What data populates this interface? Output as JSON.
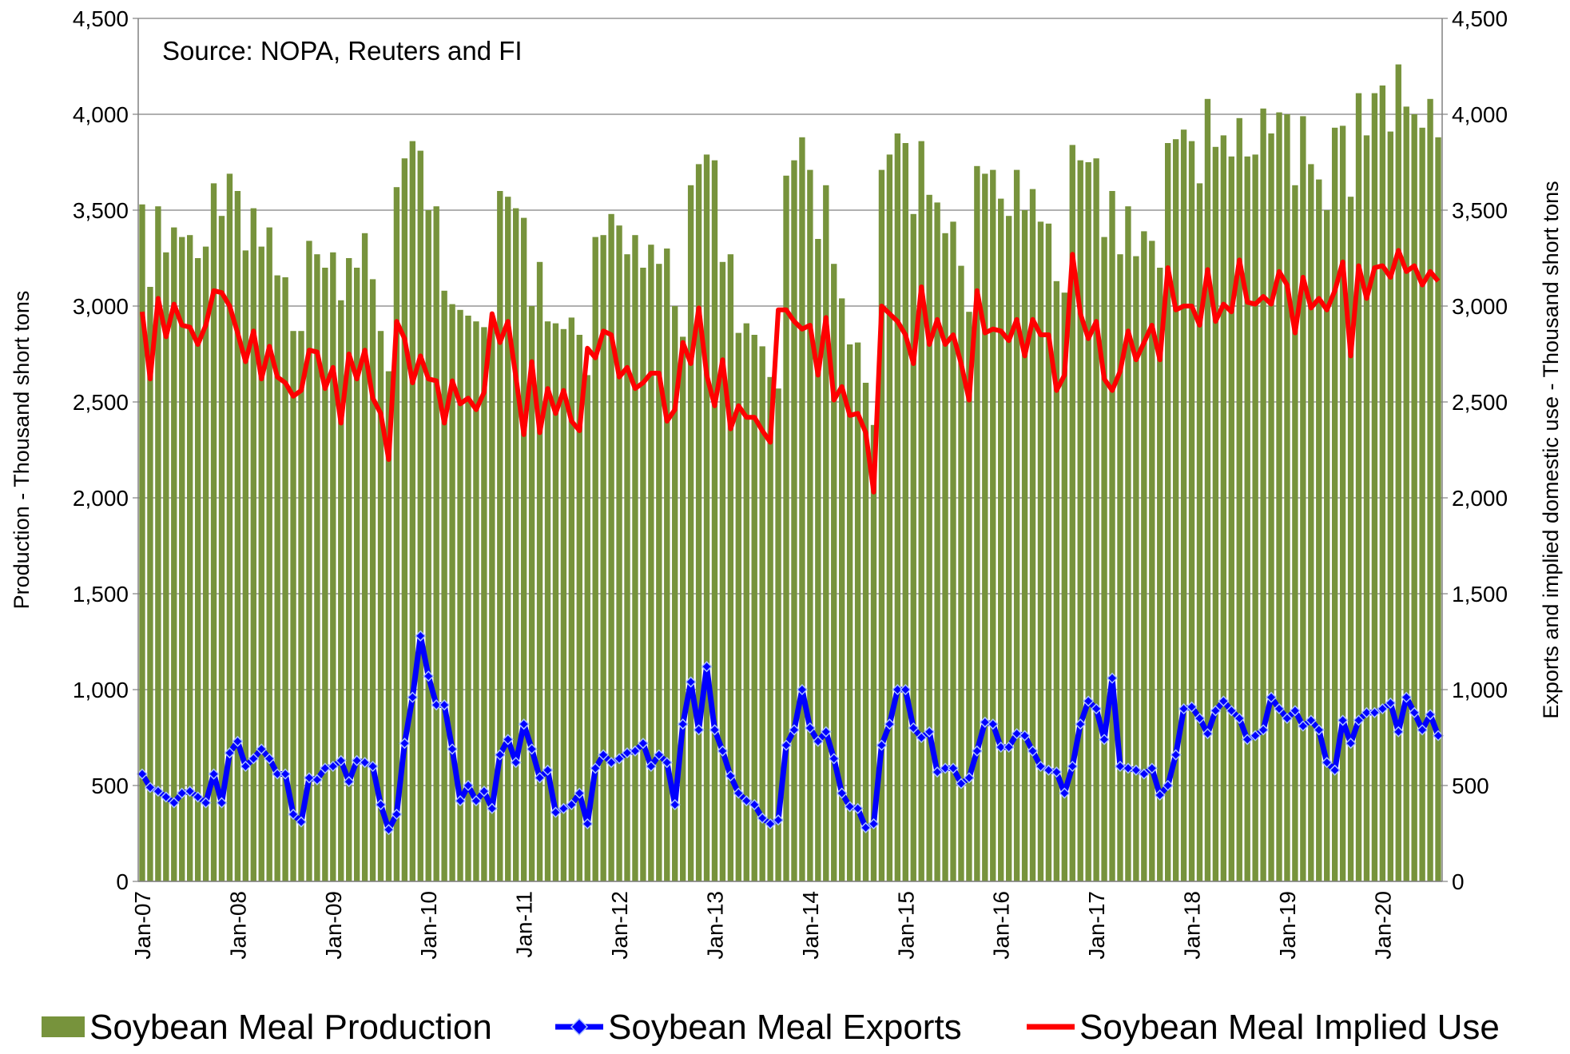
{
  "chart_data": {
    "type": "bar_line",
    "annotation": "Source: NOPA, Reuters and FI",
    "y_label": "Production - Thousand short tons",
    "y2_label": "Exports and implied domestic use - Thousand short tons",
    "ylim": [
      0,
      4500
    ],
    "yticks": [
      0,
      500,
      {
        "value": 1000,
        "label": "1,000"
      },
      {
        "value": 1500,
        "label": "1,500"
      },
      {
        "value": 2000,
        "label": "2,000"
      },
      {
        "value": 2500,
        "label": "2,500"
      },
      {
        "value": 3000,
        "label": "3,000"
      },
      {
        "value": 3500,
        "label": "3,500"
      },
      {
        "value": 4000,
        "label": "4,000"
      },
      {
        "value": 4500,
        "label": "4,500"
      }
    ],
    "y2lim": [
      0,
      4500
    ],
    "y2ticks": [
      0,
      500,
      {
        "value": 1000,
        "label": "1,000"
      },
      {
        "value": 1500,
        "label": "1,500"
      },
      {
        "value": 2000,
        "label": "2,000"
      },
      {
        "value": 2500,
        "label": "2,500"
      },
      {
        "value": 3000,
        "label": "3,000"
      },
      {
        "value": 3500,
        "label": "3,500"
      },
      {
        "value": 4000,
        "label": "4,000"
      },
      {
        "value": 4500,
        "label": "4,500"
      }
    ],
    "grid": true,
    "legend": "bottom",
    "categories": [
      "Jan-07",
      null,
      null,
      null,
      null,
      null,
      null,
      null,
      null,
      null,
      null,
      null,
      "Jan-08",
      null,
      null,
      null,
      null,
      null,
      null,
      null,
      null,
      null,
      null,
      null,
      "Jan-09",
      null,
      null,
      null,
      null,
      null,
      null,
      null,
      null,
      null,
      null,
      null,
      "Jan-10",
      null,
      null,
      null,
      null,
      null,
      null,
      null,
      null,
      null,
      null,
      null,
      "Jan-11",
      null,
      null,
      null,
      null,
      null,
      null,
      null,
      null,
      null,
      null,
      null,
      "Jan-12",
      null,
      null,
      null,
      null,
      null,
      null,
      null,
      null,
      null,
      null,
      null,
      "Jan-13",
      null,
      null,
      null,
      null,
      null,
      null,
      null,
      null,
      null,
      null,
      null,
      "Jan-14",
      null,
      null,
      null,
      null,
      null,
      null,
      null,
      null,
      null,
      null,
      null,
      "Jan-15",
      null,
      null,
      null,
      null,
      null,
      null,
      null,
      null,
      null,
      null,
      null,
      "Jan-16",
      null,
      null,
      null,
      null,
      null,
      null,
      null,
      null,
      null,
      null,
      null,
      "Jan-17",
      null,
      null,
      null,
      null,
      null,
      null,
      null,
      null,
      null,
      null,
      null,
      "Jan-18",
      null,
      null,
      null,
      null,
      null,
      null,
      null,
      null,
      null,
      null,
      null,
      "Jan-19",
      null,
      null,
      null,
      null,
      null,
      null,
      null,
      null,
      null,
      null,
      null,
      "Jan-20",
      null,
      null,
      null,
      null,
      null,
      null,
      null
    ],
    "series": [
      {
        "name": "Soybean Meal Production",
        "type": "bar",
        "color": "#77933c",
        "values": [
          3530,
          3100,
          3520,
          3280,
          3410,
          3360,
          3370,
          3250,
          3310,
          3640,
          3470,
          3690,
          3600,
          3290,
          3510,
          3310,
          3410,
          3160,
          3150,
          2870,
          2870,
          3340,
          3270,
          3200,
          3280,
          3030,
          3250,
          3200,
          3380,
          3140,
          2870,
          2660,
          3620,
          3770,
          3860,
          3810,
          3500,
          3520,
          3080,
          3010,
          2980,
          2950,
          2920,
          2890,
          2920,
          3600,
          3570,
          3510,
          3460,
          3000,
          3230,
          2920,
          2910,
          2880,
          2940,
          2850,
          2640,
          3360,
          3370,
          3480,
          3420,
          3270,
          3370,
          3200,
          3320,
          3220,
          3300,
          3000,
          2840,
          3630,
          3740,
          3790,
          3760,
          3230,
          3270,
          2860,
          2910,
          2850,
          2790,
          2630,
          2570,
          3680,
          3760,
          3880,
          3710,
          3350,
          3630,
          3220,
          3040,
          2800,
          2810,
          2600,
          2380,
          3710,
          3790,
          3900,
          3850,
          3480,
          3860,
          3580,
          3540,
          3380,
          3440,
          3210,
          2970,
          3730,
          3690,
          3710,
          3560,
          3470,
          3710,
          3500,
          3610,
          3440,
          3430,
          3130,
          3070,
          3840,
          3760,
          3750,
          3770,
          3360,
          3600,
          3270,
          3520,
          3260,
          3390,
          3340,
          3200,
          3850,
          3870,
          3920,
          3860,
          3640,
          4080,
          3830,
          3890,
          3780,
          3980,
          3780,
          3790,
          4030,
          3900,
          4010,
          4000,
          3630,
          3990,
          3740,
          3660,
          3500,
          3930,
          3940,
          3570,
          4110,
          3890,
          4110,
          4150,
          3910,
          4260,
          4040,
          4000,
          3930,
          4080,
          3880
        ]
      },
      {
        "name": "Soybean Meal Exports",
        "type": "line",
        "axis": "y2",
        "color": "#0000ff",
        "values": [
          560,
          490,
          470,
          440,
          410,
          460,
          470,
          440,
          410,
          560,
          410,
          670,
          730,
          600,
          640,
          690,
          640,
          560,
          560,
          350,
          310,
          540,
          530,
          590,
          600,
          630,
          520,
          630,
          620,
          600,
          400,
          270,
          350,
          720,
          960,
          1280,
          1070,
          920,
          920,
          690,
          420,
          500,
          420,
          470,
          380,
          660,
          740,
          620,
          820,
          690,
          540,
          580,
          360,
          380,
          400,
          460,
          300,
          590,
          660,
          620,
          640,
          670,
          680,
          720,
          600,
          660,
          620,
          400,
          820,
          1040,
          790,
          1120,
          790,
          680,
          550,
          460,
          420,
          400,
          330,
          300,
          320,
          710,
          790,
          1000,
          800,
          730,
          780,
          640,
          460,
          390,
          380,
          280,
          300,
          710,
          820,
          1000,
          1000,
          800,
          750,
          780,
          570,
          590,
          590,
          510,
          540,
          680,
          830,
          820,
          700,
          700,
          770,
          760,
          680,
          600,
          580,
          570,
          460,
          600,
          820,
          940,
          900,
          740,
          1060,
          600,
          590,
          580,
          560,
          590,
          450,
          500,
          660,
          900,
          910,
          850,
          770,
          890,
          940,
          890,
          850,
          740,
          760,
          790,
          960,
          900,
          850,
          890,
          810,
          840,
          790,
          620,
          580,
          840,
          720,
          840,
          880,
          880,
          900,
          930,
          780,
          960,
          880,
          790,
          870,
          760
        ]
      },
      {
        "name": "Soybean Meal Implied Use",
        "type": "line",
        "axis": "y2",
        "color": "#ff0000",
        "values": [
          2970,
          2620,
          3040,
          2840,
          3010,
          2900,
          2890,
          2800,
          2900,
          3080,
          3070,
          3000,
          2860,
          2710,
          2870,
          2620,
          2790,
          2630,
          2600,
          2530,
          2560,
          2770,
          2760,
          2570,
          2680,
          2390,
          2750,
          2620,
          2770,
          2520,
          2440,
          2200,
          2920,
          2830,
          2600,
          2740,
          2620,
          2610,
          2390,
          2610,
          2490,
          2520,
          2460,
          2550,
          2960,
          2810,
          2920,
          2630,
          2330,
          2710,
          2340,
          2570,
          2440,
          2560,
          2400,
          2350,
          2780,
          2730,
          2870,
          2850,
          2630,
          2680,
          2570,
          2600,
          2650,
          2650,
          2400,
          2460,
          2810,
          2700,
          2990,
          2640,
          2480,
          2720,
          2360,
          2480,
          2420,
          2420,
          2350,
          2290,
          2980,
          2980,
          2920,
          2880,
          2900,
          2640,
          2940,
          2510,
          2580,
          2430,
          2440,
          2340,
          2030,
          3000,
          2960,
          2920,
          2850,
          2700,
          3100,
          2800,
          2930,
          2800,
          2850,
          2700,
          2510,
          3080,
          2860,
          2880,
          2870,
          2820,
          2930,
          2740,
          2930,
          2850,
          2850,
          2560,
          2640,
          3270,
          2960,
          2830,
          2920,
          2620,
          2560,
          2660,
          2870,
          2720,
          2810,
          2900,
          2720,
          3200,
          2980,
          3000,
          3000,
          2900,
          3190,
          2920,
          3010,
          2970,
          3240,
          3020,
          3010,
          3050,
          3010,
          3180,
          3110,
          2860,
          3150,
          2990,
          3040,
          2980,
          3080,
          3230,
          2740,
          3210,
          3040,
          3200,
          3210,
          3150,
          3290,
          3180,
          3210,
          3110,
          3180,
          3130
        ]
      }
    ]
  }
}
